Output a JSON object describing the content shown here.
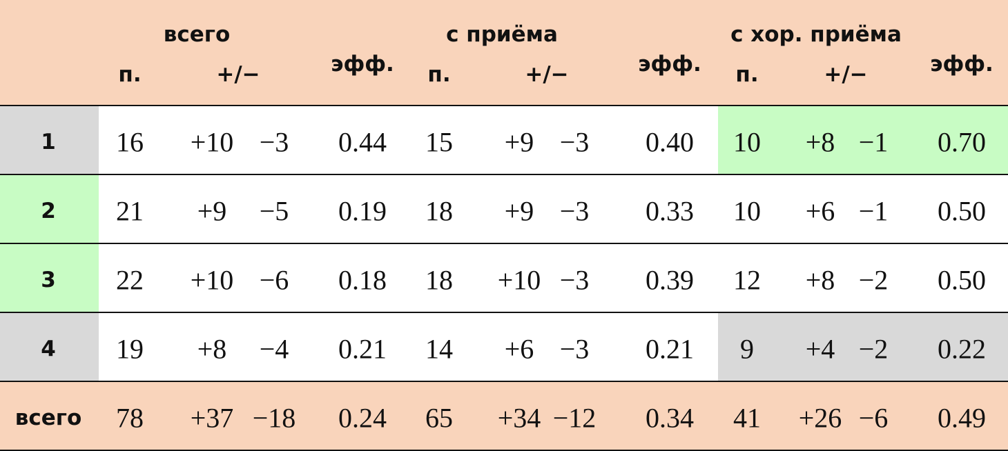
{
  "table": {
    "groups": [
      "всего",
      "с приёма",
      "с хор. приёма"
    ],
    "subheaders": [
      "п.",
      "+/−",
      "эфф."
    ],
    "rows": [
      {
        "label": "1",
        "cells": [
          [
            "16",
            "+10",
            "−3",
            "0.44"
          ],
          [
            "15",
            "+9",
            "−3",
            "0.40"
          ],
          [
            "10",
            "+8",
            "−1",
            "0.70"
          ]
        ]
      },
      {
        "label": "2",
        "cells": [
          [
            "21",
            "+9",
            "−5",
            "0.19"
          ],
          [
            "18",
            "+9",
            "−3",
            "0.33"
          ],
          [
            "10",
            "+6",
            "−1",
            "0.50"
          ]
        ]
      },
      {
        "label": "3",
        "cells": [
          [
            "22",
            "+10",
            "−6",
            "0.18"
          ],
          [
            "18",
            "+10",
            "−3",
            "0.39"
          ],
          [
            "12",
            "+8",
            "−2",
            "0.50"
          ]
        ]
      },
      {
        "label": "4",
        "cells": [
          [
            "19",
            "+8",
            "−4",
            "0.21"
          ],
          [
            "14",
            "+6",
            "−3",
            "0.21"
          ],
          [
            "9",
            "+4",
            "−2",
            "0.22"
          ]
        ]
      }
    ],
    "total": {
      "label": "всего",
      "cells": [
        [
          "78",
          "+37",
          "−18",
          "0.24"
        ],
        [
          "65",
          "+34",
          "−12",
          "0.34"
        ],
        [
          "41",
          "+26",
          "−6",
          "0.49"
        ]
      ]
    }
  }
}
